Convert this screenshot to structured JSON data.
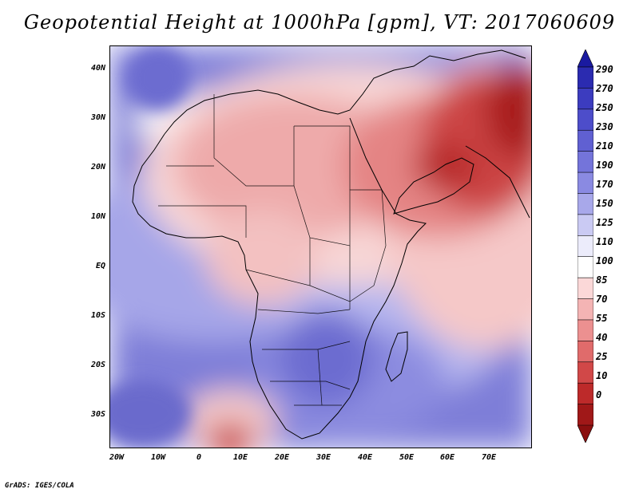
{
  "title": "Geopotential Height at 1000hPa [gpm], VT: 2017060609",
  "credit": "GrADS: IGES/COLA",
  "axes": {
    "y_ticks": [
      "40N",
      "30N",
      "20N",
      "10N",
      "EQ",
      "10S",
      "20S",
      "30S"
    ],
    "x_ticks": [
      "20W",
      "10W",
      "0",
      "10E",
      "20E",
      "30E",
      "40E",
      "50E",
      "60E",
      "70E"
    ]
  },
  "legend": {
    "labels": [
      "290",
      "270",
      "250",
      "230",
      "210",
      "190",
      "170",
      "150",
      "125",
      "110",
      "100",
      "85",
      "70",
      "55",
      "40",
      "25",
      "10",
      "0"
    ],
    "colors": [
      "#1a1aa0",
      "#2b2bb0",
      "#3c3cbf",
      "#4d4dca",
      "#6060d2",
      "#7474da",
      "#8a8ae2",
      "#a8a8ea",
      "#cacaf3",
      "#ececfb",
      "#ffffff",
      "#fbd8d8",
      "#f4b4b4",
      "#ec9090",
      "#e06b6b",
      "#d14848",
      "#bd2a2a",
      "#a01818",
      "#8a0f0f"
    ]
  }
}
